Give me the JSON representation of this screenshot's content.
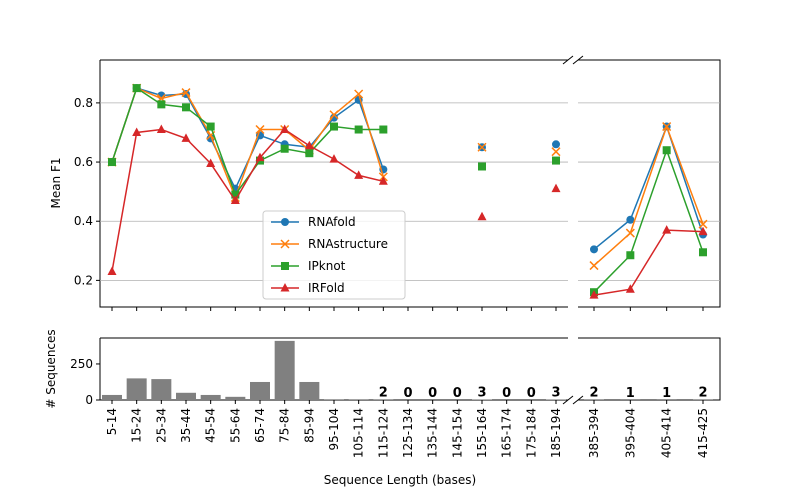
{
  "chart_data": [
    {
      "type": "line",
      "ylabel": "Mean F1",
      "ylim": [
        0.11,
        0.945
      ],
      "yticks": [
        0.2,
        0.4,
        0.6,
        0.8
      ],
      "grid": "y",
      "legend": "lower center",
      "series": [
        {
          "name": "RNAfold",
          "color": "#1f77b4",
          "marker": "circle",
          "values": [
            0.6,
            0.85,
            0.825,
            0.83,
            0.68,
            0.51,
            0.69,
            0.66,
            0.65,
            0.75,
            0.81,
            0.575,
            null,
            null,
            null,
            0.65,
            null,
            null,
            0.66,
            0.305,
            0.405,
            0.72,
            0.355
          ]
        },
        {
          "name": "RNAstructure",
          "color": "#ff7f0e",
          "marker": "x",
          "values": [
            0.6,
            0.85,
            0.815,
            0.835,
            0.69,
            0.48,
            0.71,
            0.71,
            0.64,
            0.76,
            0.83,
            0.55,
            null,
            null,
            null,
            0.65,
            null,
            null,
            0.635,
            0.25,
            0.36,
            0.72,
            0.39
          ]
        },
        {
          "name": "IPknot",
          "color": "#2ca02c",
          "marker": "square",
          "values": [
            0.6,
            0.85,
            0.795,
            0.785,
            0.72,
            0.49,
            0.605,
            0.645,
            0.63,
            0.72,
            0.71,
            0.71,
            null,
            null,
            null,
            0.585,
            null,
            null,
            0.605,
            0.16,
            0.285,
            0.64,
            0.295
          ]
        },
        {
          "name": "IRFold",
          "color": "#d62728",
          "marker": "triangle",
          "values": [
            0.23,
            0.7,
            0.71,
            0.68,
            0.595,
            0.47,
            0.615,
            0.71,
            0.655,
            0.61,
            0.555,
            0.535,
            null,
            null,
            null,
            0.415,
            null,
            null,
            0.51,
            0.15,
            0.17,
            0.37,
            0.365
          ]
        }
      ]
    },
    {
      "type": "bar",
      "ylabel": "# Sequences",
      "xlabel": "Sequence Length (bases)",
      "color": "#808080",
      "x_break_after": 18,
      "categories": [
        "5-14",
        "15-24",
        "25-34",
        "35-44",
        "45-54",
        "55-64",
        "65-74",
        "75-84",
        "85-94",
        "95-104",
        "105-114",
        "115-124",
        "125-134",
        "135-144",
        "145-154",
        "155-164",
        "165-174",
        "175-184",
        "185-194",
        "385-394",
        "395-404",
        "405-414",
        "415-425"
      ],
      "values": [
        35,
        150,
        145,
        50,
        35,
        22,
        125,
        410,
        125,
        5,
        5,
        2,
        0,
        0,
        0,
        3,
        0,
        0,
        3,
        2,
        1,
        1,
        2
      ],
      "value_labels": [
        null,
        null,
        null,
        null,
        null,
        null,
        null,
        null,
        null,
        null,
        null,
        "2",
        "0",
        "0",
        "0",
        "3",
        "0",
        "0",
        "3",
        "2",
        "1",
        "1",
        "2"
      ],
      "ylim": [
        0,
        430
      ],
      "yticks": [
        0,
        250
      ]
    }
  ]
}
